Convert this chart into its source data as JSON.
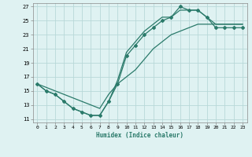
{
  "xlabel": "Humidex (Indice chaleur)",
  "bg_color": "#dff2f2",
  "line_color": "#2a7a6a",
  "grid_color": "#b8d8d8",
  "xlim": [
    -0.5,
    23.5
  ],
  "ylim": [
    10.5,
    27.5
  ],
  "xticks": [
    0,
    1,
    2,
    3,
    4,
    5,
    6,
    7,
    8,
    9,
    10,
    11,
    12,
    13,
    14,
    15,
    16,
    17,
    18,
    19,
    20,
    21,
    22,
    23
  ],
  "yticks": [
    11,
    13,
    15,
    17,
    19,
    21,
    23,
    25,
    27
  ],
  "curve1_x": [
    0,
    1,
    2,
    3,
    4,
    5,
    6,
    7,
    8,
    9,
    10,
    11,
    12,
    13,
    14,
    15,
    16,
    17,
    18,
    19,
    20,
    21,
    22,
    23
  ],
  "curve1_y": [
    16.0,
    15.0,
    14.5,
    13.5,
    12.5,
    12.0,
    11.5,
    11.5,
    13.5,
    16.0,
    20.0,
    21.5,
    23.0,
    24.0,
    25.0,
    25.5,
    27.0,
    26.5,
    26.5,
    25.5,
    24.0,
    24.0,
    24.0,
    24.0
  ],
  "curve2_x": [
    0,
    1,
    2,
    3,
    4,
    5,
    6,
    7,
    8,
    9,
    10,
    11,
    12,
    13,
    14,
    15,
    16,
    17,
    18,
    19,
    20,
    21,
    22,
    23
  ],
  "curve2_y": [
    16.0,
    15.0,
    14.5,
    13.5,
    12.5,
    12.0,
    11.5,
    11.5,
    13.5,
    16.5,
    20.5,
    22.0,
    23.5,
    24.5,
    25.5,
    25.5,
    26.5,
    26.5,
    26.5,
    25.5,
    24.5,
    24.5,
    24.5,
    24.5
  ],
  "curve3_x": [
    0,
    1,
    2,
    3,
    4,
    5,
    6,
    7,
    8,
    9,
    10,
    11,
    12,
    13,
    14,
    15,
    16,
    17,
    18,
    19,
    20,
    21,
    22,
    23
  ],
  "curve3_y": [
    16.0,
    15.5,
    15.0,
    14.5,
    14.0,
    13.5,
    13.0,
    12.5,
    14.5,
    16.0,
    17.0,
    18.0,
    19.5,
    21.0,
    22.0,
    23.0,
    23.5,
    24.0,
    24.5,
    24.5,
    24.5,
    24.5,
    24.5,
    24.5
  ]
}
